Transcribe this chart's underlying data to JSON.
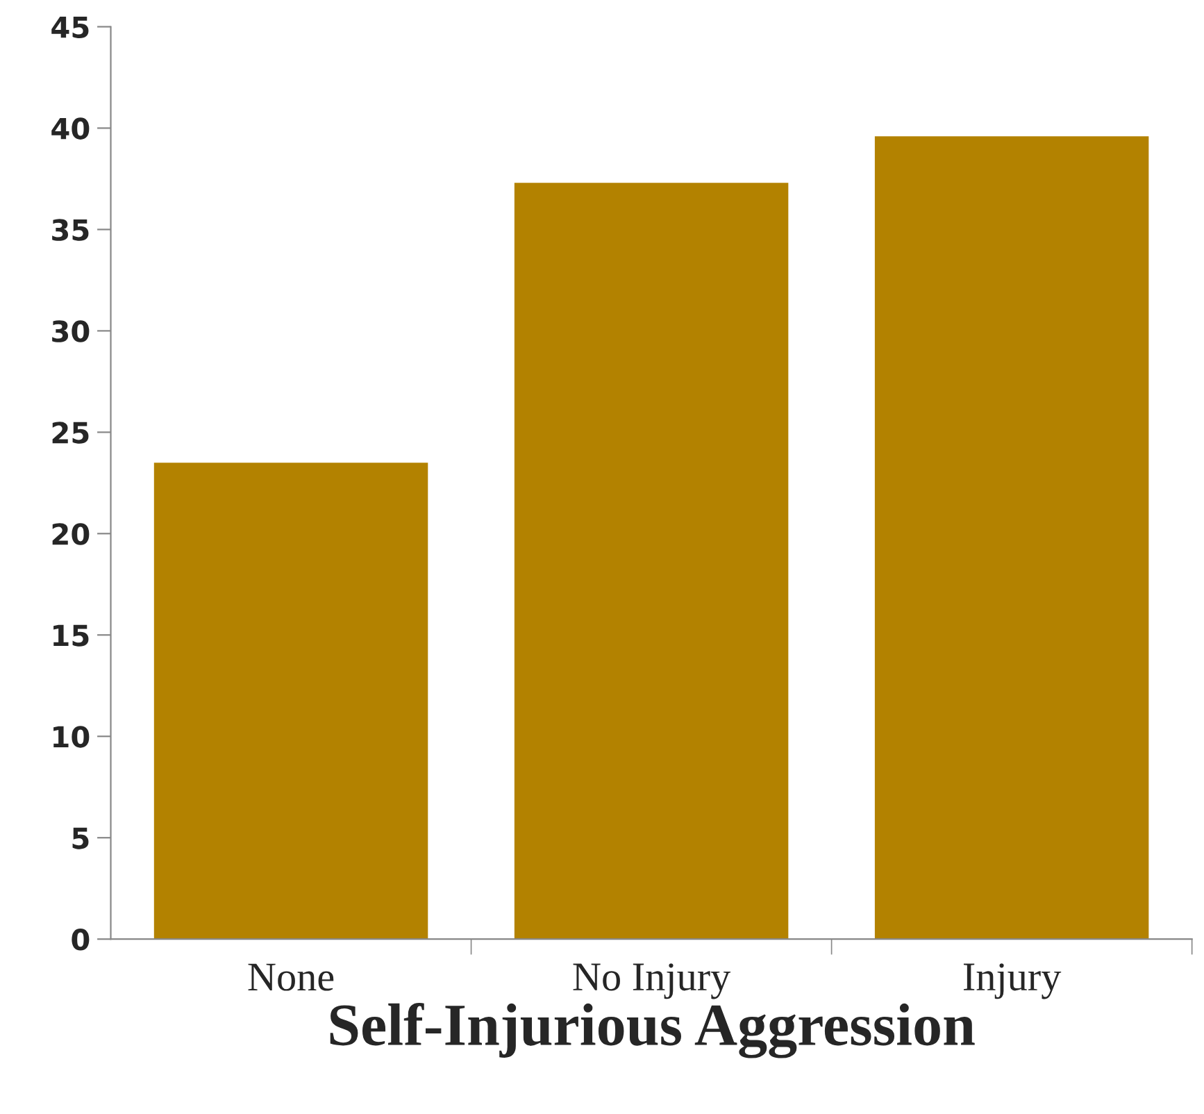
{
  "chart_data": {
    "type": "bar",
    "xlabel": "Self-Injurious Aggression",
    "categories": [
      "None",
      "No Injury",
      "Injury"
    ],
    "values": [
      23.5,
      37.3,
      39.6
    ],
    "color": "#b38200",
    "ylim": [
      0,
      45
    ],
    "yticks": [
      0,
      5,
      10,
      15,
      20,
      25,
      30,
      35,
      40,
      45
    ],
    "grid": false,
    "legend": false
  }
}
